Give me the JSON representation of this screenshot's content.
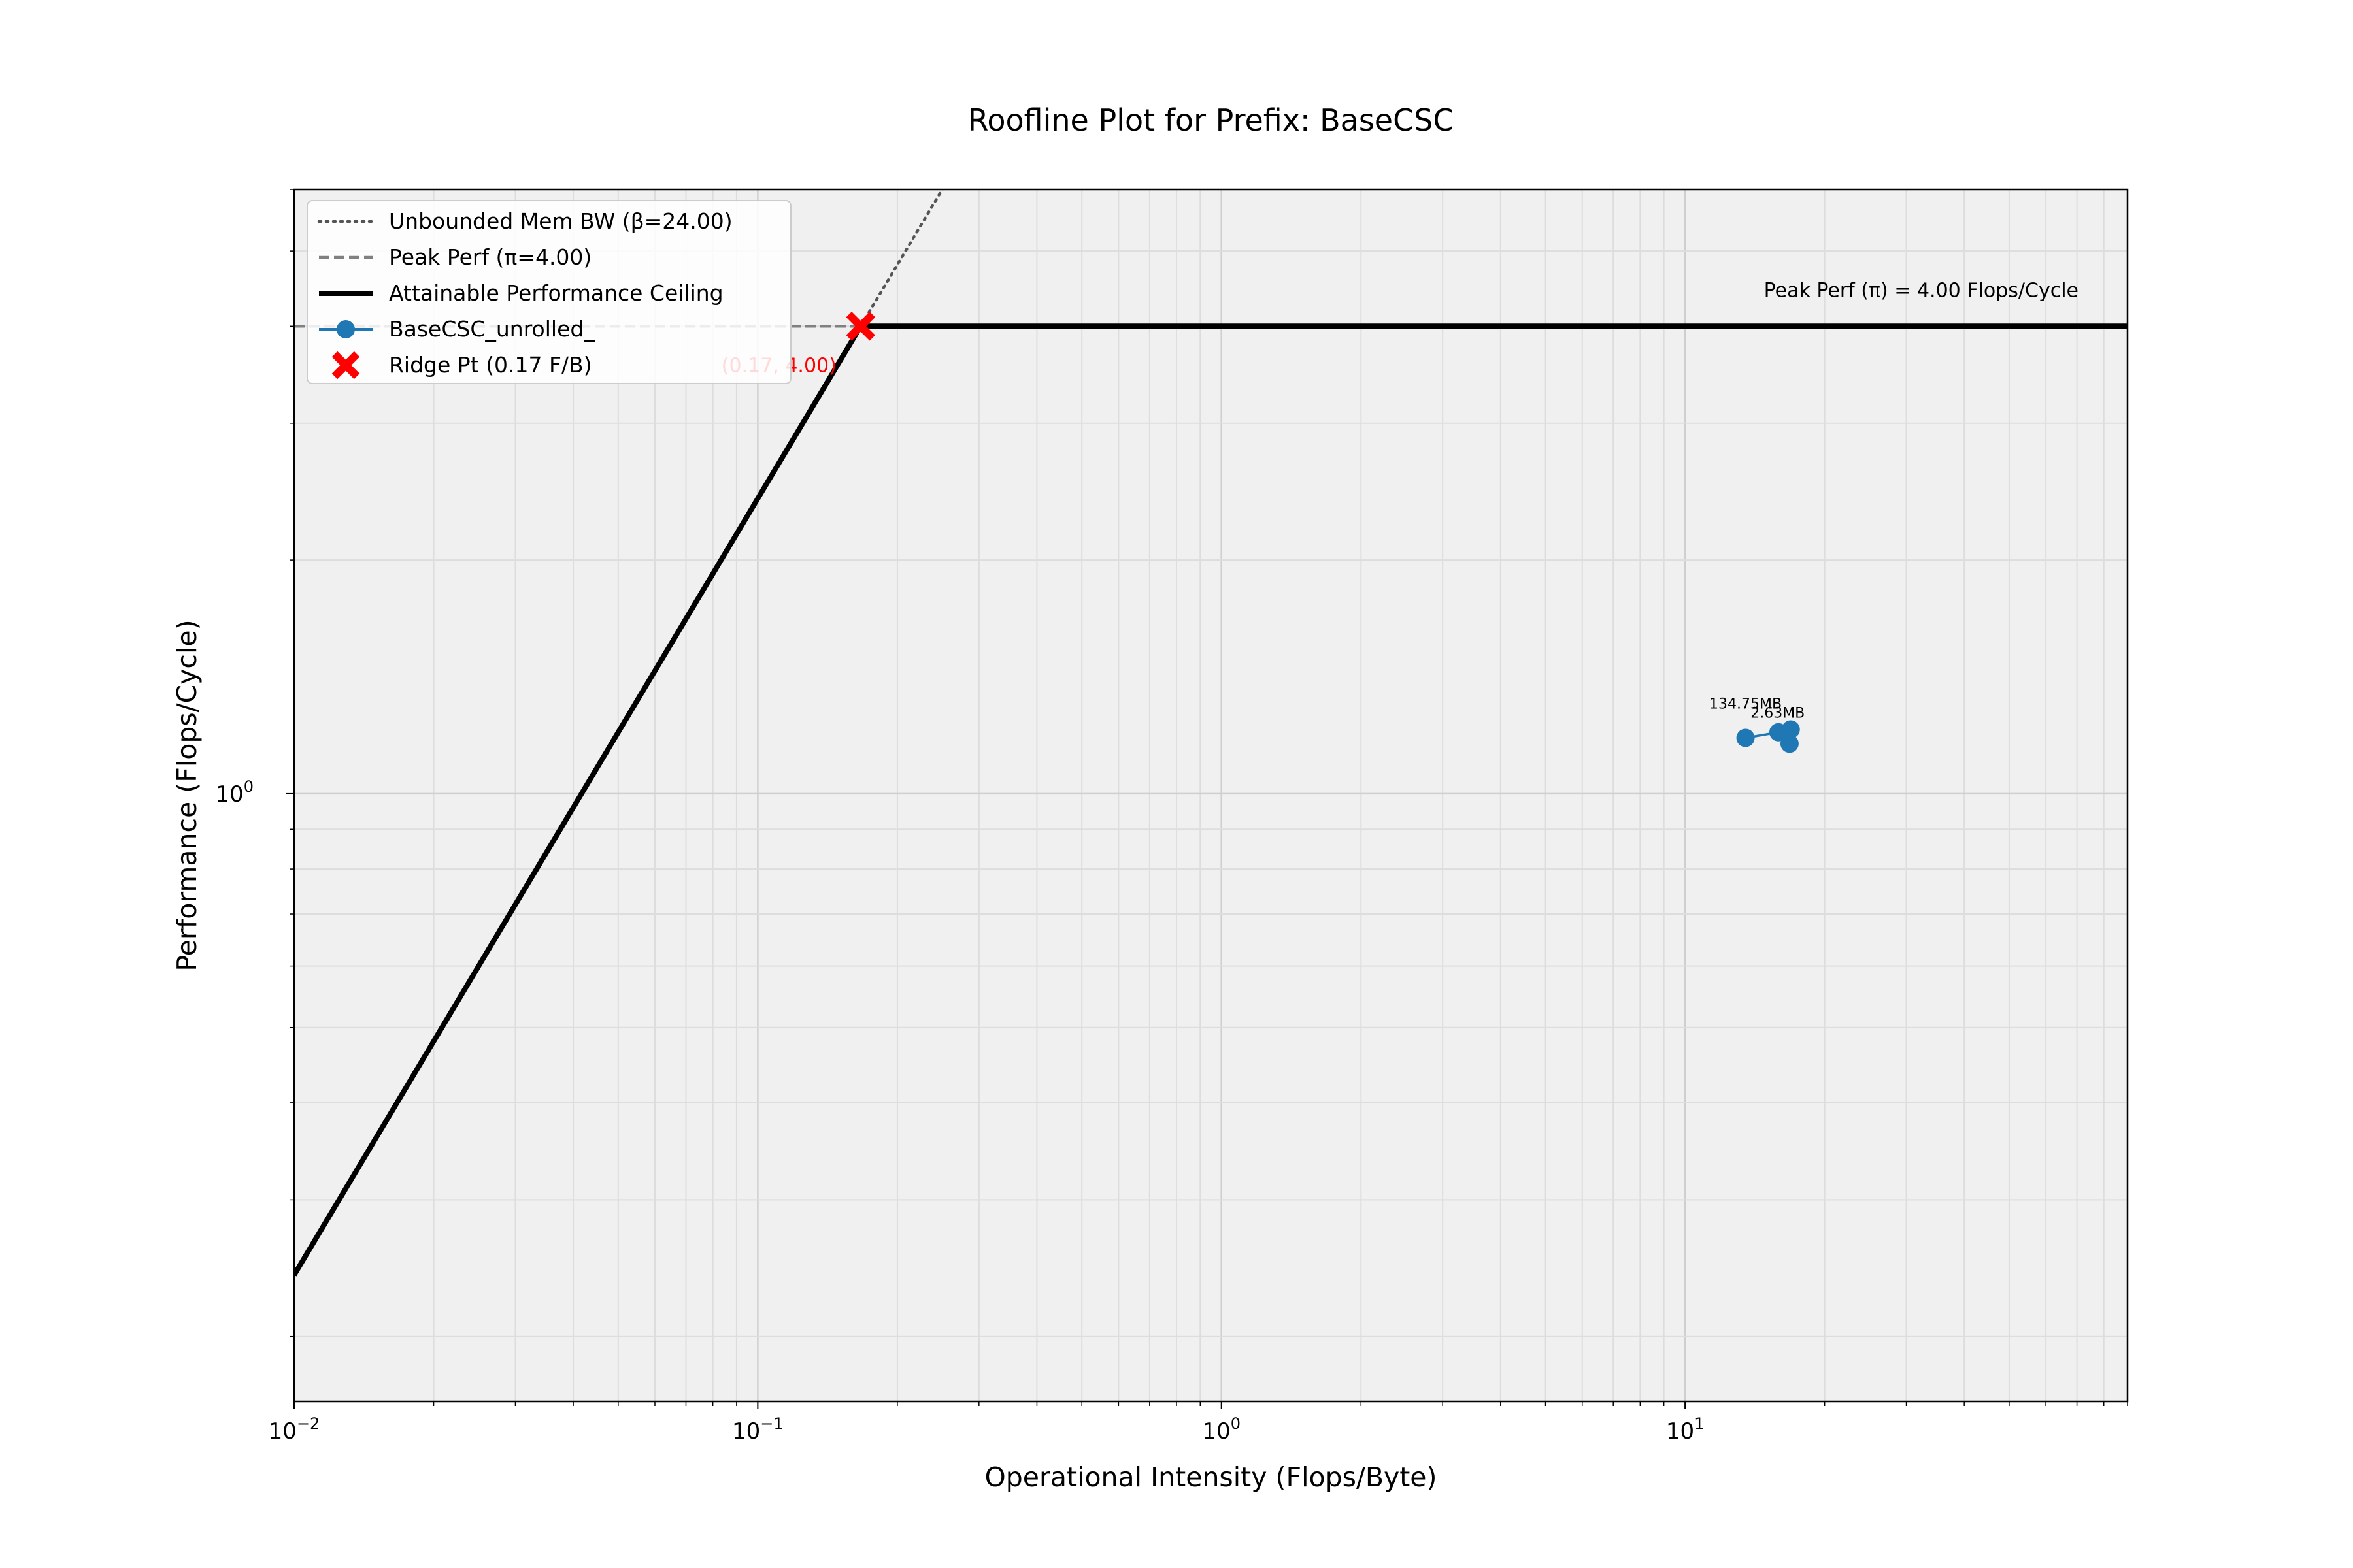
{
  "chart_data": {
    "type": "line",
    "title": "Roofline Plot for Prefix: BaseCSC",
    "xlabel": "Operational Intensity (Flops/Byte)",
    "ylabel": "Performance (Flops/Cycle)",
    "x_scale": "log",
    "y_scale": "log",
    "xlim": [
      0.01,
      90
    ],
    "ylim": [
      0.165,
      6.0
    ],
    "x_ticks": [
      {
        "value": 0.01,
        "base": "10",
        "exp": "−2"
      },
      {
        "value": 0.1,
        "base": "10",
        "exp": "−1"
      },
      {
        "value": 1,
        "base": "10",
        "exp": "0"
      },
      {
        "value": 10,
        "base": "10",
        "exp": "1"
      }
    ],
    "y_ticks": [
      {
        "value": 1,
        "base": "10",
        "exp": "0"
      }
    ],
    "grid": true,
    "legend_position": "top-left",
    "series": [
      {
        "name": "Unbounded Mem BW (β=24.00)",
        "kind": "dotted",
        "color": "#555555",
        "slope": 24.0
      },
      {
        "name": "Peak Perf (π=4.00)",
        "kind": "dashed",
        "color": "#808080",
        "value": 4.0
      },
      {
        "name": "Attainable Performance Ceiling",
        "kind": "solid",
        "color": "#000000"
      },
      {
        "name": "BaseCSC_unrolled_",
        "kind": "markers",
        "color": "#1f77b4",
        "points": [
          {
            "x": 13.5,
            "y": 1.18,
            "label": "134.75MB"
          },
          {
            "x": 15.9,
            "y": 1.2,
            "label": ""
          },
          {
            "x": 16.9,
            "y": 1.21,
            "label": "2.63MB"
          },
          {
            "x": 16.8,
            "y": 1.16,
            "label": ""
          }
        ]
      },
      {
        "name": "Ridge Pt (0.17 F/B)",
        "kind": "ridge",
        "color": "#ff0000",
        "x": 0.1667,
        "y": 4.0
      }
    ],
    "annotations": {
      "peak_text": "Peak Perf (π) = 4.00 Flops/Cycle",
      "ridge_text": "(0.17, 4.00)"
    }
  }
}
